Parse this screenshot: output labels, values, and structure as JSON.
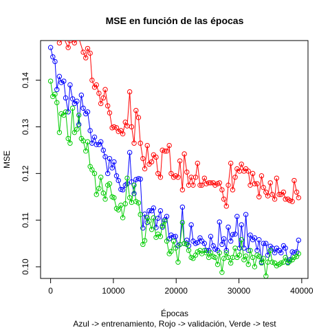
{
  "chart_data": {
    "type": "line",
    "title": "MSE en función de las épocas",
    "xlabel": "Épocas",
    "ylabel": "MSE",
    "caption": "Azul -> entrenamiento, Rojo -> validación, Verde -> test",
    "xlim": [
      -1600,
      41000
    ],
    "ylim": [
      0.0975,
      0.1485
    ],
    "xticks": [
      0,
      10000,
      20000,
      30000,
      40000
    ],
    "xtick_labels": [
      "0",
      "10000",
      "20000",
      "30000",
      "40000"
    ],
    "yticks": [
      0.1,
      0.11,
      0.12,
      0.13,
      0.14
    ],
    "ytick_labels": [
      "0.10",
      "0.11",
      "0.12",
      "0.13",
      "0.14"
    ],
    "grid": false,
    "marker": "open-circle",
    "colors": {
      "blue": "#0000ff",
      "red": "#ff0000",
      "green": "#00cc00"
    },
    "series": [
      {
        "color": "#0000ff",
        "x": [
          0,
          350,
          700,
          1000,
          1400,
          1700,
          2100,
          2400,
          2800,
          3100,
          3500,
          3800,
          4200,
          4500,
          4900,
          5200,
          5600,
          5900,
          6300,
          6600,
          7000,
          7300,
          7700,
          8000,
          8400,
          8700,
          9100,
          9400,
          9800,
          10100,
          10500,
          10800,
          11200,
          11500,
          11900,
          12200,
          12600,
          12900,
          13300,
          13600,
          14000,
          14300,
          14700,
          15000,
          15400,
          15700,
          16100,
          16400,
          16800,
          17100,
          17500,
          17800,
          18200,
          18500,
          18900,
          19200,
          19600,
          19900,
          20300,
          20600,
          21000,
          21300,
          21700,
          22000,
          22400,
          22700,
          23100,
          23400,
          23800,
          24100,
          24500,
          24800,
          25200,
          25500,
          25900,
          26200,
          26600,
          26900,
          27300,
          27600,
          28000,
          28300,
          28700,
          29000,
          29400,
          29700,
          30100,
          30400,
          30800,
          31100,
          31500,
          31800,
          32200,
          32500,
          32900,
          33200,
          33600,
          33900,
          34300,
          34600,
          35000,
          35300,
          35700,
          36000,
          36400,
          36700,
          37100,
          37400,
          37800,
          38100,
          38500,
          38800,
          39200,
          39500
        ],
        "y": [
          0.147,
          0.145,
          0.144,
          0.138,
          0.1408,
          0.1395,
          0.1398,
          0.1362,
          0.1332,
          0.139,
          0.136,
          0.135,
          0.1355,
          0.1305,
          0.1368,
          0.134,
          0.1328,
          0.1332,
          0.1292,
          0.1265,
          0.1278,
          0.1262,
          0.1262,
          0.1268,
          0.125,
          0.1236,
          0.12,
          0.1232,
          0.1212,
          0.1225,
          0.1195,
          0.1185,
          0.1166,
          0.1165,
          0.1175,
          0.1178,
          0.1245,
          0.1182,
          0.1157,
          0.1187,
          0.1189,
          0.1188,
          0.1083,
          0.1113,
          0.1095,
          0.112,
          0.112,
          0.1126,
          0.1084,
          0.1104,
          0.112,
          0.1085,
          0.1101,
          0.1108,
          0.106,
          0.1068,
          0.1064,
          0.1065,
          0.1045,
          0.1048,
          0.1128,
          0.105,
          0.1057,
          0.1045,
          0.109,
          0.1055,
          0.105,
          0.1052,
          0.1062,
          0.1055,
          0.105,
          0.1035,
          0.1035,
          0.1065,
          0.1045,
          0.1038,
          0.1035,
          0.1096,
          0.1048,
          0.106,
          0.1035,
          0.1085,
          0.1055,
          0.1069,
          0.107,
          0.1108,
          0.104,
          0.109,
          0.104,
          0.1112,
          0.1035,
          0.1068,
          0.1058,
          0.1062,
          0.1035,
          0.1058,
          0.101,
          0.105,
          0.105,
          0.1025,
          0.1044,
          0.104,
          0.103,
          0.104,
          0.1035,
          0.103,
          0.1045,
          0.104,
          0.101,
          0.1015,
          0.1032,
          0.103,
          0.1032,
          0.1057
        ]
      },
      {
        "color": "#ff0000",
        "x": [
          1400,
          2100,
          2800,
          3100,
          3500,
          3800,
          4500,
          5200,
          5600,
          5900,
          6300,
          6600,
          7000,
          7300,
          7700,
          8000,
          8400,
          8700,
          9100,
          9400,
          9800,
          10100,
          10500,
          10800,
          11200,
          11500,
          11900,
          12200,
          12600,
          12900,
          13300,
          13600,
          14000,
          14300,
          14700,
          15000,
          15400,
          15700,
          16100,
          16400,
          16800,
          17100,
          17500,
          17800,
          18200,
          18500,
          18900,
          19200,
          19600,
          19900,
          20300,
          20600,
          21000,
          21300,
          21700,
          22000,
          22400,
          22700,
          23100,
          23400,
          23800,
          24100,
          24500,
          24800,
          25200,
          25500,
          25900,
          26200,
          26600,
          26900,
          27300,
          27600,
          28000,
          28300,
          28700,
          29000,
          29400,
          29700,
          30100,
          30400,
          30800,
          31100,
          31500,
          31800,
          32200,
          32500,
          32900,
          33200,
          33600,
          33900,
          34300,
          34600,
          35000,
          35300,
          35700,
          36000,
          36400,
          36700,
          37100,
          37400,
          37800,
          38100,
          38500,
          38800,
          39200,
          39500
        ],
        "y": [
          0.148,
          0.149,
          0.147,
          0.1485,
          0.151,
          0.148,
          0.149,
          0.146,
          0.1448,
          0.1468,
          0.1458,
          0.14,
          0.1385,
          0.139,
          0.1372,
          0.135,
          0.1362,
          0.138,
          0.1345,
          0.133,
          0.1298,
          0.13,
          0.1298,
          0.129,
          0.1292,
          0.1285,
          0.131,
          0.1302,
          0.1375,
          0.13,
          0.1265,
          0.1335,
          0.132,
          0.1265,
          0.1232,
          0.121,
          0.126,
          0.122,
          0.1225,
          0.124,
          0.1235,
          0.12,
          0.1192,
          0.125,
          0.1248,
          0.1248,
          0.126,
          0.12,
          0.1192,
          0.1195,
          0.1192,
          0.1227,
          0.1165,
          0.1242,
          0.1203,
          0.1175,
          0.1192,
          0.1175,
          0.1192,
          0.1222,
          0.1175,
          0.1175,
          0.119,
          0.1178,
          0.118,
          0.118,
          0.118,
          0.1175,
          0.1178,
          0.118,
          0.1165,
          0.1145,
          0.113,
          0.1175,
          0.1222,
          0.1165,
          0.1192,
          0.121,
          0.1205,
          0.122,
          0.1205,
          0.121,
          0.1205,
          0.1175,
          0.12,
          0.1178,
          0.1178,
          0.115,
          0.1195,
          0.117,
          0.116,
          0.1152,
          0.118,
          0.1155,
          0.1145,
          0.119,
          0.1155,
          0.1155,
          0.116,
          0.1145,
          0.1145,
          0.1142,
          0.114,
          0.1185,
          0.116,
          0.1148
        ]
      },
      {
        "color": "#00cc00",
        "x": [
          0,
          350,
          700,
          1000,
          1400,
          1700,
          2100,
          2400,
          2800,
          3100,
          3500,
          3800,
          4200,
          4500,
          4900,
          5200,
          5600,
          5900,
          6300,
          6600,
          7000,
          7300,
          7700,
          8000,
          8400,
          8700,
          9100,
          9400,
          9800,
          10100,
          10500,
          10800,
          11200,
          11500,
          11900,
          12200,
          12600,
          12900,
          13300,
          13600,
          14000,
          14300,
          14700,
          15000,
          15400,
          15700,
          16100,
          16400,
          16800,
          17100,
          17500,
          17800,
          18200,
          18500,
          18900,
          19200,
          19600,
          19900,
          20300,
          20600,
          21000,
          21300,
          21700,
          22000,
          22400,
          22700,
          23100,
          23400,
          23800,
          24100,
          24500,
          24800,
          25200,
          25500,
          25900,
          26200,
          26600,
          26900,
          27300,
          27600,
          28000,
          28300,
          28700,
          29000,
          29400,
          29700,
          30100,
          30400,
          30800,
          31100,
          31500,
          31800,
          32200,
          32500,
          32900,
          33200,
          33600,
          33900,
          34300,
          34600,
          35000,
          35300,
          35700,
          36000,
          36400,
          36700,
          37100,
          37400,
          37800,
          38100,
          38500,
          38800,
          39200,
          39500
        ],
        "y": [
          0.1398,
          0.1365,
          0.137,
          0.1352,
          0.1288,
          0.1328,
          0.1325,
          0.1332,
          0.1275,
          0.1265,
          0.134,
          0.1288,
          0.1295,
          0.1325,
          0.1275,
          0.127,
          0.1248,
          0.1268,
          0.1215,
          0.1208,
          0.12,
          0.1155,
          0.1168,
          0.1192,
          0.1158,
          0.1145,
          0.1175,
          0.1178,
          0.115,
          0.1148,
          0.1125,
          0.1122,
          0.1132,
          0.1105,
          0.1135,
          0.119,
          0.1148,
          0.1138,
          0.1175,
          0.114,
          0.1137,
          0.1112,
          0.1048,
          0.1056,
          0.1105,
          0.1098,
          0.108,
          0.1105,
          0.1063,
          0.107,
          0.1065,
          0.1088,
          0.1098,
          0.1055,
          0.1028,
          0.1033,
          0.1055,
          0.104,
          0.101,
          0.1048,
          0.1095,
          0.105,
          0.1048,
          0.1035,
          0.102,
          0.1018,
          0.1025,
          0.1032,
          0.1035,
          0.1028,
          0.1035,
          0.103,
          0.102,
          0.103,
          0.1022,
          0.102,
          0.1005,
          0.103,
          0.0988,
          0.1018,
          0.103,
          0.102,
          0.1008,
          0.102,
          0.104,
          0.102,
          0.1025,
          0.1058,
          0.1015,
          0.1023,
          0.1005,
          0.1035,
          0.102,
          0.1,
          0.1025,
          0.1022,
          0.1008,
          0.1018,
          0.098,
          0.101,
          0.1035,
          0.101,
          0.1008,
          0.1002,
          0.1005,
          0.1008,
          0.101,
          0.102,
          0.1008,
          0.1012,
          0.1015,
          0.102,
          0.1022,
          0.1028
        ]
      }
    ]
  }
}
